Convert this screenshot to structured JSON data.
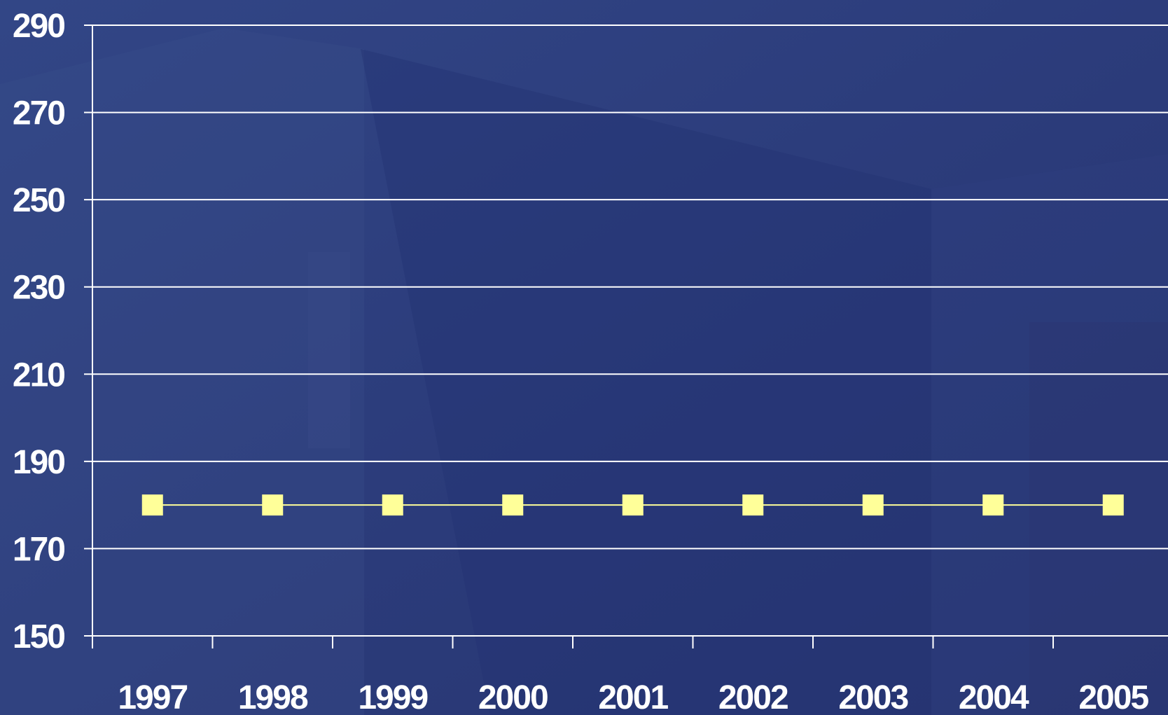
{
  "chart_data": {
    "type": "line",
    "title": "",
    "xlabel": "",
    "ylabel": "",
    "categories": [
      "1997",
      "1998",
      "1999",
      "2000",
      "2001",
      "2002",
      "2003",
      "2004",
      "2005"
    ],
    "series": [
      {
        "values": [
          180,
          180,
          180,
          180,
          180,
          180,
          180,
          180,
          180
        ],
        "color": "#ffff99",
        "marker": "square"
      }
    ],
    "ylim": [
      150,
      290
    ],
    "yticks": [
      "150",
      "170",
      "190",
      "210",
      "230",
      "250",
      "270",
      "290"
    ],
    "grid": true,
    "legend": "none",
    "colors": {
      "background": "#2b3c7c",
      "axis": "#ffffff",
      "grid": "#ffffff",
      "text": "#ffffff"
    }
  }
}
